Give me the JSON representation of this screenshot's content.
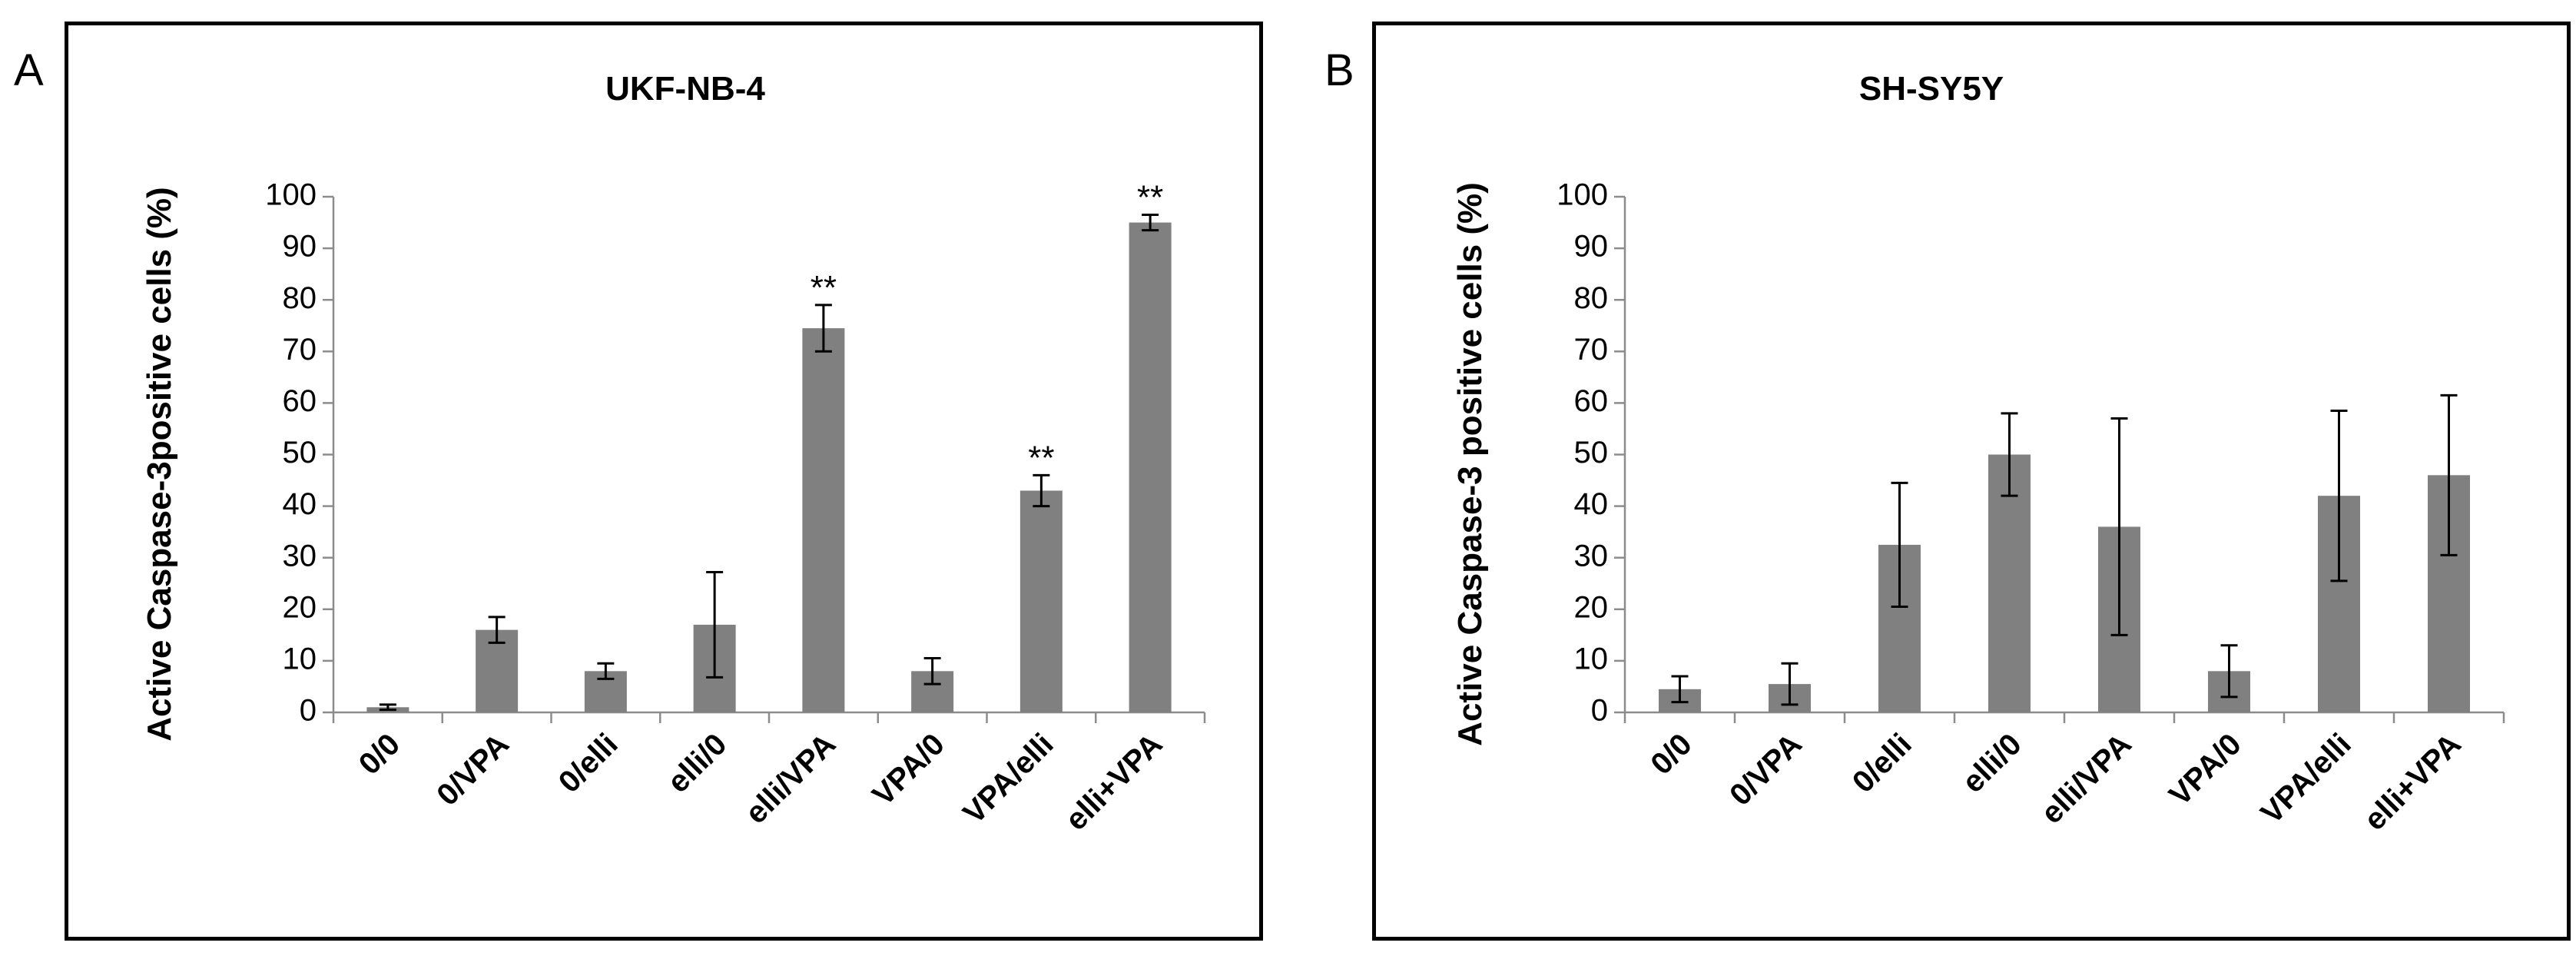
{
  "chart_data": [
    {
      "panel": "A",
      "type": "bar",
      "title": "UKF-NB-4",
      "xlabel": "",
      "ylabel": "Active Caspase-3positive cells (%)",
      "ylim": [
        0,
        100
      ],
      "yticks": [
        0,
        10,
        20,
        30,
        40,
        50,
        60,
        70,
        80,
        90,
        100
      ],
      "grid": false,
      "categories": [
        "0/0",
        "0/VPA",
        "0/elli",
        "elli/0",
        "elli/VPA",
        "VPA/0",
        "VPA/elli",
        "elli+VPA"
      ],
      "values": [
        1,
        16,
        8,
        17,
        74.5,
        8,
        43,
        95
      ],
      "errors": [
        0.5,
        2.5,
        1.5,
        10.2,
        4.5,
        2.5,
        3,
        1.5
      ],
      "annotations": [
        "",
        "",
        "",
        "",
        "**",
        "",
        "**",
        "**"
      ]
    },
    {
      "panel": "B",
      "type": "bar",
      "title": "SH-SY5Y",
      "xlabel": "",
      "ylabel": "Active Caspase-3 positive cells (%)",
      "ylim": [
        0,
        100
      ],
      "yticks": [
        0,
        10,
        20,
        30,
        40,
        50,
        60,
        70,
        80,
        90,
        100
      ],
      "grid": false,
      "categories": [
        "0/0",
        "0/VPA",
        "0/elli",
        "elli/0",
        "elli/VPA",
        "VPA/0",
        "VPA/elli",
        "elli+VPA"
      ],
      "values": [
        4.5,
        5.5,
        32.5,
        50,
        36,
        8,
        42,
        46
      ],
      "errors": [
        2.5,
        4,
        12,
        8,
        21,
        5,
        16.5,
        15.5
      ],
      "annotations": [
        "",
        "",
        "",
        "",
        "",
        "",
        "",
        ""
      ]
    }
  ],
  "colors": {
    "bar": "#808080",
    "axis": "#8c8c8c",
    "frame": "#000000"
  }
}
